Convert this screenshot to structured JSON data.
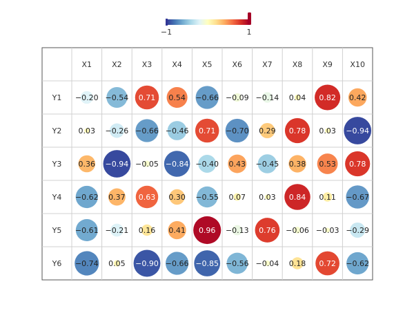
{
  "chart_data": {
    "type": "heatmap",
    "subtype": "correlation-circle-matrix",
    "columns": [
      "X1",
      "X2",
      "X3",
      "X4",
      "X5",
      "X6",
      "X7",
      "X8",
      "X9",
      "X10"
    ],
    "rows": [
      "Y1",
      "Y2",
      "Y3",
      "Y4",
      "Y5",
      "Y6"
    ],
    "values": [
      [
        -0.2,
        -0.54,
        0.71,
        0.54,
        -0.66,
        -0.09,
        -0.14,
        0.04,
        0.82,
        0.42
      ],
      [
        0.03,
        -0.26,
        -0.66,
        -0.46,
        0.71,
        -0.7,
        0.29,
        0.78,
        0.03,
        -0.94
      ],
      [
        0.36,
        -0.94,
        -0.05,
        -0.84,
        -0.4,
        0.43,
        -0.45,
        0.38,
        0.53,
        0.78
      ],
      [
        -0.62,
        0.37,
        0.63,
        0.3,
        -0.55,
        0.07,
        0.03,
        0.84,
        0.11,
        -0.67
      ],
      [
        -0.61,
        -0.21,
        0.16,
        0.41,
        0.96,
        -0.13,
        0.76,
        -0.06,
        -0.03,
        -0.29
      ],
      [
        -0.74,
        0.05,
        -0.9,
        -0.66,
        -0.85,
        -0.56,
        -0.04,
        0.18,
        0.72,
        -0.62
      ]
    ],
    "labels": [
      [
        "−0.20",
        "−0.54",
        "0.71",
        "0.54",
        "−0.66",
        "−0.09",
        "−0.14",
        "0.04",
        "0.82",
        "0.42"
      ],
      [
        "0.03",
        "−0.26",
        "−0.66",
        "−0.46",
        "0.71",
        "−0.70",
        "0.29",
        "0.78",
        "0.03",
        "−0.94"
      ],
      [
        "0.36",
        "−0.94",
        "−0.05",
        "−0.84",
        "−0.40",
        "0.43",
        "−0.45",
        "0.38",
        "0.53",
        "0.78"
      ],
      [
        "−0.62",
        "0.37",
        "0.63",
        "0.30",
        "−0.55",
        "0.07",
        "0.03",
        "0.84",
        "0.11",
        "−0.67"
      ],
      [
        "−0.61",
        "−0.21",
        "0.16",
        "0.41",
        "0.96",
        "−0.13",
        "0.76",
        "−0.06",
        "−0.03",
        "−0.29"
      ],
      [
        "−0.74",
        "0.05",
        "−0.90",
        "−0.66",
        "−0.85",
        "−0.56",
        "−0.04",
        "0.18",
        "0.72",
        "−0.62"
      ]
    ],
    "value_range": [
      -1,
      1
    ],
    "legend": {
      "min_label": "−1",
      "max_label": "1",
      "placement": "top-center"
    },
    "colorscale": [
      "#313695",
      "#4575b4",
      "#74add1",
      "#abd9e9",
      "#e0f3f8",
      "#ffffbf",
      "#fee090",
      "#fdae61",
      "#f46d43",
      "#d73027",
      "#a50026"
    ],
    "grid": true
  }
}
